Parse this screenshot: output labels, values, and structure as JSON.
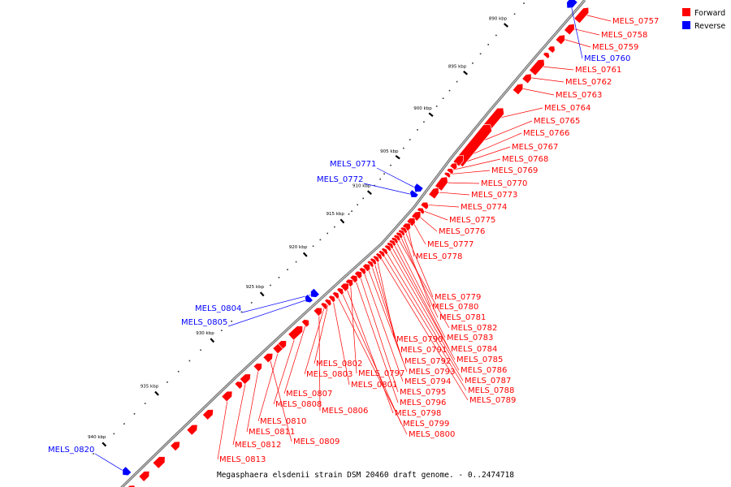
{
  "caption": "Megasphaera elsdenii strain DSM 20460 draft genome. - 0..2474718",
  "legend": [
    {
      "label": "Forward",
      "color": "#ff0000"
    },
    {
      "label": "Reverse",
      "color": "#0000ff"
    }
  ],
  "colors": {
    "forward": "#ff0000",
    "reverse": "#0000ff",
    "axis": "#888888"
  },
  "ticks": [
    {
      "label": "890 kbp",
      "pos": 890
    },
    {
      "label": "895 kbp",
      "pos": 895
    },
    {
      "label": "900 kbp",
      "pos": 900
    },
    {
      "label": "905 kbp",
      "pos": 905
    },
    {
      "label": "910 kbp",
      "pos": 910
    },
    {
      "label": "915 kbp",
      "pos": 915
    },
    {
      "label": "920 kbp",
      "pos": 920
    },
    {
      "label": "925 kbp",
      "pos": 925
    },
    {
      "label": "930 kbp",
      "pos": 930
    },
    {
      "label": "935 kbp",
      "pos": 935
    },
    {
      "label": "940 kbp",
      "pos": 940
    }
  ],
  "genes": [
    {
      "name": "MELS_0757",
      "strand": "forward"
    },
    {
      "name": "MELS_0758",
      "strand": "forward"
    },
    {
      "name": "MELS_0759",
      "strand": "forward"
    },
    {
      "name": "MELS_0760",
      "strand": "reverse"
    },
    {
      "name": "MELS_0761",
      "strand": "forward"
    },
    {
      "name": "MELS_0762",
      "strand": "forward"
    },
    {
      "name": "MELS_0763",
      "strand": "forward"
    },
    {
      "name": "MELS_0764",
      "strand": "forward"
    },
    {
      "name": "MELS_0765",
      "strand": "forward"
    },
    {
      "name": "MELS_0766",
      "strand": "forward"
    },
    {
      "name": "MELS_0767",
      "strand": "forward"
    },
    {
      "name": "MELS_0768",
      "strand": "forward"
    },
    {
      "name": "MELS_0769",
      "strand": "forward"
    },
    {
      "name": "MELS_0770",
      "strand": "forward"
    },
    {
      "name": "MELS_0771",
      "strand": "reverse"
    },
    {
      "name": "MELS_0772",
      "strand": "reverse"
    },
    {
      "name": "MELS_0773",
      "strand": "forward"
    },
    {
      "name": "MELS_0774",
      "strand": "forward"
    },
    {
      "name": "MELS_0775",
      "strand": "forward"
    },
    {
      "name": "MELS_0776",
      "strand": "forward"
    },
    {
      "name": "MELS_0777",
      "strand": "forward"
    },
    {
      "name": "MELS_0778",
      "strand": "forward"
    },
    {
      "name": "MELS_0779",
      "strand": "forward"
    },
    {
      "name": "MELS_0780",
      "strand": "forward"
    },
    {
      "name": "MELS_0781",
      "strand": "forward"
    },
    {
      "name": "MELS_0782",
      "strand": "forward"
    },
    {
      "name": "MELS_0783",
      "strand": "forward"
    },
    {
      "name": "MELS_0784",
      "strand": "forward"
    },
    {
      "name": "MELS_0785",
      "strand": "forward"
    },
    {
      "name": "MELS_0786",
      "strand": "forward"
    },
    {
      "name": "MELS_0787",
      "strand": "forward"
    },
    {
      "name": "MELS_0788",
      "strand": "forward"
    },
    {
      "name": "MELS_0789",
      "strand": "forward"
    },
    {
      "name": "MELS_0790",
      "strand": "forward"
    },
    {
      "name": "MELS_0791",
      "strand": "forward"
    },
    {
      "name": "MELS_0792",
      "strand": "forward"
    },
    {
      "name": "MELS_0793",
      "strand": "forward"
    },
    {
      "name": "MELS_0794",
      "strand": "forward"
    },
    {
      "name": "MELS_0795",
      "strand": "forward"
    },
    {
      "name": "MELS_0796",
      "strand": "forward"
    },
    {
      "name": "MELS_0797",
      "strand": "forward"
    },
    {
      "name": "MELS_0798",
      "strand": "forward"
    },
    {
      "name": "MELS_0799",
      "strand": "forward"
    },
    {
      "name": "MELS_0800",
      "strand": "forward"
    },
    {
      "name": "MELS_0801",
      "strand": "forward"
    },
    {
      "name": "MELS_0802",
      "strand": "forward"
    },
    {
      "name": "MELS_0803",
      "strand": "forward"
    },
    {
      "name": "MELS_0804",
      "strand": "reverse"
    },
    {
      "name": "MELS_0805",
      "strand": "reverse"
    },
    {
      "name": "MELS_0806",
      "strand": "forward"
    },
    {
      "name": "MELS_0807",
      "strand": "forward"
    },
    {
      "name": "MELS_0808",
      "strand": "forward"
    },
    {
      "name": "MELS_0809",
      "strand": "forward"
    },
    {
      "name": "MELS_0810",
      "strand": "forward"
    },
    {
      "name": "MELS_0811",
      "strand": "forward"
    },
    {
      "name": "MELS_0812",
      "strand": "forward"
    },
    {
      "name": "MELS_0813",
      "strand": "forward"
    },
    {
      "name": "MELS_0820",
      "strand": "reverse"
    }
  ]
}
